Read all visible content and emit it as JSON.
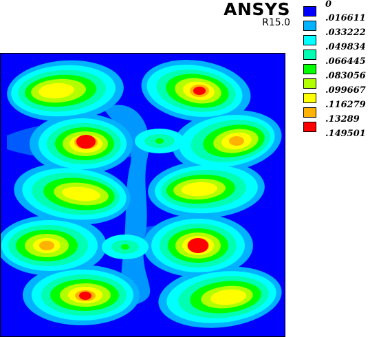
{
  "header": {
    "product": "ANSYS",
    "release": "R15.0"
  },
  "legend": {
    "levels": [
      {
        "label": "0",
        "color": "#0000FF"
      },
      {
        "label": ".016611",
        "color": "#00B2FF"
      },
      {
        "label": ".033222",
        "color": "#00FFFF"
      },
      {
        "label": ".049834",
        "color": "#00FFB2"
      },
      {
        "label": ".066445",
        "color": "#00FF00"
      },
      {
        "label": ".083056",
        "color": "#B2FF00"
      },
      {
        "label": ".099667",
        "color": "#FFFF00"
      },
      {
        "label": ".116279",
        "color": "#FFB200"
      },
      {
        "label": ".13289",
        "color": "#FF0000"
      },
      {
        "label": ".149501",
        "color": null
      }
    ]
  },
  "plot": {
    "type": "filled-contour",
    "background_color": "#0000FF"
  }
}
